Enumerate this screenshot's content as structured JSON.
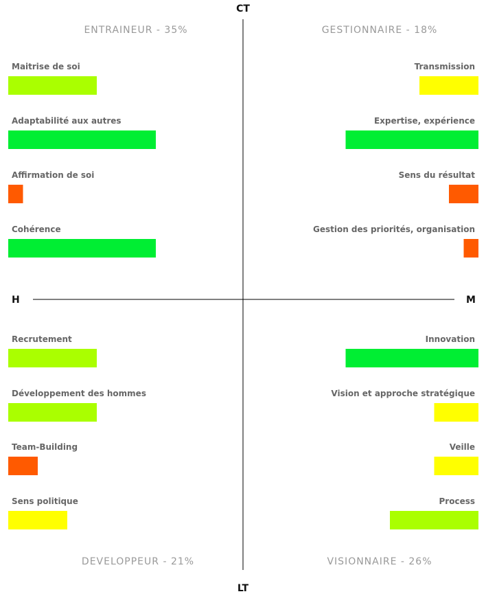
{
  "chart_data": {
    "type": "bar",
    "axes": {
      "top": "CT",
      "bottom": "LT",
      "left": "H",
      "right": "M"
    },
    "level_scale": {
      "min": 0,
      "max": 10
    },
    "level_colors": {
      "green": "#00ee33",
      "yellow_green": "#aaff00",
      "yellow": "#ffff00",
      "orange": "#ff5a00"
    },
    "quadrants": [
      {
        "key": "tl",
        "title": "ENTRAINEUR - 35%",
        "align": "left",
        "items": [
          {
            "label": "Maitrise de soi",
            "value": 6,
            "color": "#aaff00"
          },
          {
            "label": "Adaptabilité aux autres",
            "value": 10,
            "color": "#00ee33"
          },
          {
            "label": "Affirmation de soi",
            "value": 1,
            "color": "#ff5a00"
          },
          {
            "label": "Cohérence",
            "value": 10,
            "color": "#00ee33"
          }
        ]
      },
      {
        "key": "tr",
        "title": "GESTIONNAIRE - 18%",
        "align": "right",
        "items": [
          {
            "label": "Transmission",
            "value": 4,
            "color": "#ffff00"
          },
          {
            "label": "Expertise, expérience",
            "value": 9,
            "color": "#00ee33"
          },
          {
            "label": "Sens du résultat",
            "value": 2,
            "color": "#ff5a00"
          },
          {
            "label": "Gestion des priorités, organisation",
            "value": 1,
            "color": "#ff5a00"
          }
        ]
      },
      {
        "key": "bl",
        "title": "DEVELOPPEUR - 21%",
        "align": "left",
        "items": [
          {
            "label": "Recrutement",
            "value": 6,
            "color": "#aaff00"
          },
          {
            "label": "Développement des hommes",
            "value": 6,
            "color": "#aaff00"
          },
          {
            "label": "Team-Building",
            "value": 2,
            "color": "#ff5a00"
          },
          {
            "label": "Sens politique",
            "value": 4,
            "color": "#ffff00"
          }
        ]
      },
      {
        "key": "br",
        "title": "VISIONNAIRE - 26%",
        "align": "right",
        "items": [
          {
            "label": "Innovation",
            "value": 9,
            "color": "#00ee33"
          },
          {
            "label": "Vision et approche stratégique",
            "value": 3,
            "color": "#ffff00"
          },
          {
            "label": "Veille",
            "value": 3,
            "color": "#ffff00"
          },
          {
            "label": "Process",
            "value": 6,
            "color": "#aaff00"
          }
        ]
      }
    ]
  }
}
